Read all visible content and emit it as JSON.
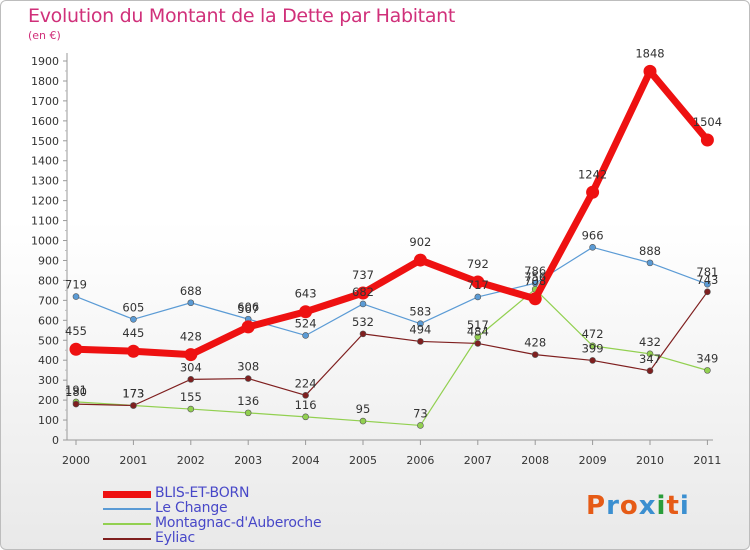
{
  "title": "Evolution du Montant de la Dette par Habitant",
  "subtitle": "(en €)",
  "logo": {
    "text": "Proxiti",
    "colors": [
      "#e65b16",
      "#3b8fd0",
      "#e65b16",
      "#3b8fd0",
      "#2a9d3a",
      "#e65b16",
      "#3b8fd0"
    ]
  },
  "chart_data": {
    "type": "line",
    "x": [
      "2000",
      "2001",
      "2002",
      "2003",
      "2004",
      "2005",
      "2006",
      "2007",
      "2008",
      "2009",
      "2010",
      "2011"
    ],
    "ylim": [
      0,
      1900
    ],
    "yticks": [
      0,
      100,
      200,
      300,
      400,
      500,
      600,
      700,
      800,
      900,
      1000,
      1100,
      1200,
      1300,
      1400,
      1500,
      1600,
      1700,
      1800,
      1900
    ],
    "grid": false,
    "legend_position": "bottom-left",
    "series": [
      {
        "name": "Le Change",
        "color": "#5b9bd5",
        "values": [
          719,
          605,
          688,
          606,
          524,
          682,
          583,
          717,
          786,
          966,
          888,
          781
        ]
      },
      {
        "name": "Montagnac-d'Auberoche",
        "color": "#92d050",
        "values": [
          191,
          173,
          155,
          136,
          116,
          95,
          73,
          517,
          756,
          472,
          432,
          349
        ]
      },
      {
        "name": "Eyliac",
        "color": "#7f1f1f",
        "values": [
          180,
          173,
          304,
          308,
          224,
          532,
          494,
          484,
          428,
          399,
          347,
          743
        ]
      },
      {
        "name": "BLIS-ET-BORN",
        "color": "#ee1111",
        "values": [
          455,
          445,
          428,
          567,
          643,
          737,
          902,
          792,
          708,
          1242,
          1848,
          1504
        ]
      }
    ]
  }
}
